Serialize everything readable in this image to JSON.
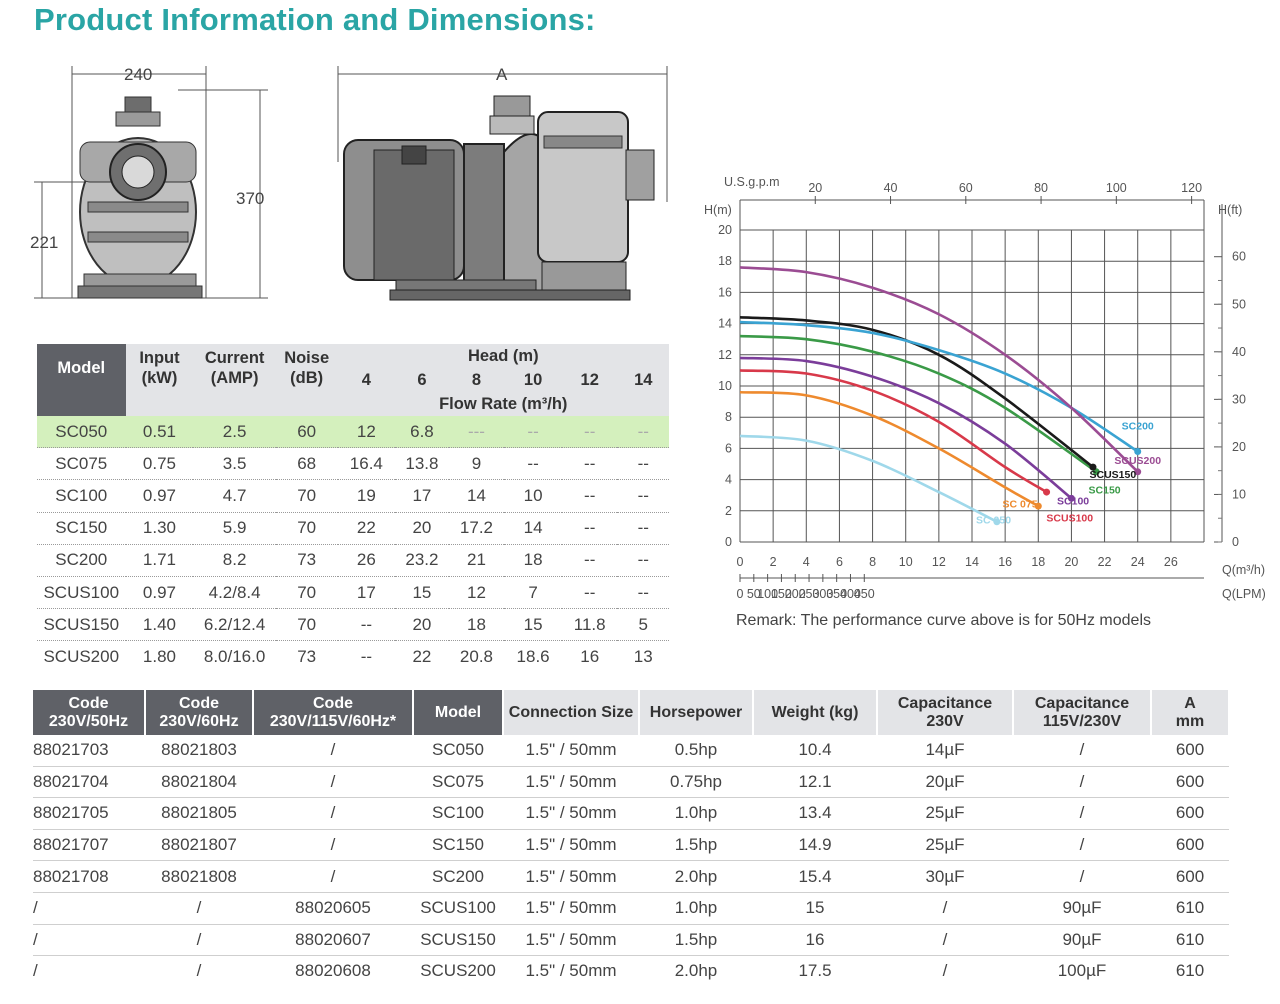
{
  "page_title": "Product Information and Dimensions:",
  "drawing": {
    "front_width_label": "240",
    "front_height_label": "370",
    "front_axis_label": "221",
    "side_length_label": "A"
  },
  "performance_table": {
    "headers": {
      "model": "Model",
      "input": "Input",
      "input_unit": "(kW)",
      "current": "Current",
      "current_unit": "(AMP)",
      "noise": "Noise",
      "noise_unit": "(dB)",
      "head": "Head (m)",
      "flow": "Flow Rate (m³/h)",
      "head_values": [
        "4",
        "6",
        "8",
        "10",
        "12",
        "14"
      ]
    },
    "rows": [
      {
        "model": "SC050",
        "input": "0.51",
        "current": "2.5",
        "noise": "60",
        "flow": [
          "12",
          "6.8",
          "---",
          "--",
          "--",
          "--"
        ]
      },
      {
        "model": "SC075",
        "input": "0.75",
        "current": "3.5",
        "noise": "68",
        "flow": [
          "16.4",
          "13.8",
          "9",
          "--",
          "--",
          "--"
        ]
      },
      {
        "model": "SC100",
        "input": "0.97",
        "current": "4.7",
        "noise": "70",
        "flow": [
          "19",
          "17",
          "14",
          "10",
          "--",
          "--"
        ]
      },
      {
        "model": "SC150",
        "input": "1.30",
        "current": "5.9",
        "noise": "70",
        "flow": [
          "22",
          "20",
          "17.2",
          "14",
          "--",
          "--"
        ]
      },
      {
        "model": "SC200",
        "input": "1.71",
        "current": "8.2",
        "noise": "73",
        "flow": [
          "26",
          "23.2",
          "21",
          "18",
          "--",
          "--"
        ]
      },
      {
        "model": "SCUS100",
        "input": "0.97",
        "current": "4.2/8.4",
        "noise": "70",
        "flow": [
          "17",
          "15",
          "12",
          "7",
          "--",
          "--"
        ]
      },
      {
        "model": "SCUS150",
        "input": "1.40",
        "current": "6.2/12.4",
        "noise": "70",
        "flow": [
          "--",
          "20",
          "18",
          "15",
          "11.8",
          "5"
        ]
      },
      {
        "model": "SCUS200",
        "input": "1.80",
        "current": "8.0/16.0",
        "noise": "73",
        "flow": [
          "--",
          "22",
          "20.8",
          "18.6",
          "16",
          "13"
        ]
      }
    ]
  },
  "chart_data": {
    "type": "line",
    "title": "",
    "y_left_label": "H(m)",
    "y_right_label": "H(ft)",
    "x_bottom_label": "Q(m³/h)",
    "x_lpm_label": "Q(LPM)",
    "x_top_label": "U.S.g.p.m",
    "ylim": [
      0,
      20
    ],
    "xlim": [
      0,
      28
    ],
    "y_ticks": [
      "0",
      "2",
      "4",
      "6",
      "8",
      "10",
      "12",
      "14",
      "16",
      "18",
      "20"
    ],
    "x_ticks": [
      "0",
      "2",
      "4",
      "6",
      "8",
      "10",
      "12",
      "14",
      "16",
      "18",
      "20",
      "22",
      "24",
      "26"
    ],
    "lpm_ticks": [
      "0",
      "50",
      "100",
      "150",
      "200",
      "250",
      "300",
      "350",
      "400",
      "450"
    ],
    "gpm_ticks": [
      "20",
      "40",
      "60",
      "80",
      "100",
      "120"
    ],
    "ft_ticks": [
      "0",
      "10",
      "20",
      "30",
      "40",
      "50",
      "60"
    ],
    "grid": true,
    "series": [
      {
        "name": "SC 050",
        "color": "#9fd8ea",
        "x": [
          0,
          4,
          8,
          12,
          15.5
        ],
        "y": [
          6.8,
          6.5,
          5.2,
          3.2,
          1.3
        ]
      },
      {
        "name": "SC 075",
        "color": "#ee8a2e",
        "x": [
          0,
          4,
          8,
          12,
          16,
          18
        ],
        "y": [
          9.6,
          9.4,
          8.1,
          6.0,
          3.5,
          2.3
        ]
      },
      {
        "name": "SCUS100",
        "color": "#d8394a",
        "x": [
          0,
          4,
          8,
          12,
          16,
          18.5
        ],
        "y": [
          11.0,
          10.8,
          9.7,
          7.7,
          4.8,
          3.2
        ]
      },
      {
        "name": "SC100",
        "color": "#7b3d9a",
        "x": [
          0,
          4,
          8,
          12,
          16,
          20
        ],
        "y": [
          11.8,
          11.6,
          10.6,
          8.9,
          6.3,
          2.8
        ]
      },
      {
        "name": "SC150",
        "color": "#3a9a47",
        "x": [
          0,
          4,
          8,
          12,
          16,
          21.5
        ],
        "y": [
          13.2,
          13.0,
          12.2,
          10.8,
          8.6,
          4.5
        ]
      },
      {
        "name": "SCUS150",
        "color": "#1a1a1a",
        "x": [
          0,
          4,
          8,
          12,
          16,
          21.3
        ],
        "y": [
          14.4,
          14.2,
          13.6,
          12.0,
          9.2,
          4.8
        ]
      },
      {
        "name": "SC200",
        "color": "#3aa3d2",
        "x": [
          0,
          4,
          8,
          12,
          16,
          20,
          24
        ],
        "y": [
          14.1,
          13.9,
          13.4,
          12.3,
          10.8,
          8.6,
          5.8
        ]
      },
      {
        "name": "SCUS200",
        "color": "#9b4c93",
        "x": [
          0,
          4,
          8,
          12,
          16,
          20,
          24
        ],
        "y": [
          17.6,
          17.3,
          16.3,
          14.6,
          12.0,
          8.6,
          4.5
        ]
      }
    ],
    "labels": [
      {
        "text": "SC200",
        "color": "#3aa3d2",
        "x": 24.0,
        "y": 7.2
      },
      {
        "text": "SCUS200",
        "color": "#9b4c93",
        "x": 24.0,
        "y": 5.0
      },
      {
        "text": "SCUS150",
        "color": "#1a1a1a",
        "x": 22.5,
        "y": 4.1
      },
      {
        "text": "SC150",
        "color": "#3a9a47",
        "x": 22.0,
        "y": 3.1
      },
      {
        "text": "SC100",
        "color": "#7b3d9a",
        "x": 20.1,
        "y": 2.4
      },
      {
        "text": "SC 075",
        "color": "#ee8a2e",
        "x": 16.9,
        "y": 2.2
      },
      {
        "text": "SCUS100",
        "color": "#d8394a",
        "x": 19.9,
        "y": 1.3
      },
      {
        "text": "SC 050",
        "color": "#9fd8ea",
        "x": 15.3,
        "y": 1.2
      }
    ]
  },
  "remark": "Remark: The performance curve above is for 50Hz models",
  "codes_table": {
    "headers": [
      {
        "line1": "Code",
        "line2": "230V/50Hz"
      },
      {
        "line1": "Code",
        "line2": "230V/60Hz"
      },
      {
        "line1": "Code",
        "line2": "230V/115V/60Hz*"
      },
      {
        "line1": "Model",
        "line2": ""
      },
      {
        "line1": "Connection Size",
        "line2": ""
      },
      {
        "line1": "Horsepower",
        "line2": ""
      },
      {
        "line1": "Weight (kg)",
        "line2": ""
      },
      {
        "line1": "Capacitance",
        "line2": "230V"
      },
      {
        "line1": "Capacitance",
        "line2": "115V/230V"
      },
      {
        "line1": "A",
        "line2": "mm"
      }
    ],
    "rows": [
      [
        "88021703",
        "88021803",
        "/",
        "SC050",
        "1.5\" / 50mm",
        "0.5hp",
        "10.4",
        "14µF",
        "/",
        "600"
      ],
      [
        "88021704",
        "88021804",
        "/",
        "SC075",
        "1.5\" / 50mm",
        "0.75hp",
        "12.1",
        "20µF",
        "/",
        "600"
      ],
      [
        "88021705",
        "88021805",
        "/",
        "SC100",
        "1.5\" / 50mm",
        "1.0hp",
        "13.4",
        "25µF",
        "/",
        "600"
      ],
      [
        "88021707",
        "88021807",
        "/",
        "SC150",
        "1.5\" / 50mm",
        "1.5hp",
        "14.9",
        "25µF",
        "/",
        "600"
      ],
      [
        "88021708",
        "88021808",
        "/",
        "SC200",
        "1.5\" / 50mm",
        "2.0hp",
        "15.4",
        "30µF",
        "/",
        "600"
      ],
      [
        "/",
        "/",
        "88020605",
        "SCUS100",
        "1.5\" / 50mm",
        "1.0hp",
        "15",
        "/",
        "90µF",
        "610"
      ],
      [
        "/",
        "/",
        "88020607",
        "SCUS150",
        "1.5\" / 50mm",
        "1.5hp",
        "16",
        "/",
        "90µF",
        "610"
      ],
      [
        "/",
        "/",
        "88020608",
        "SCUS200",
        "1.5\" / 50mm",
        "2.0hp",
        "17.5",
        "/",
        "100µF",
        "610"
      ]
    ]
  }
}
